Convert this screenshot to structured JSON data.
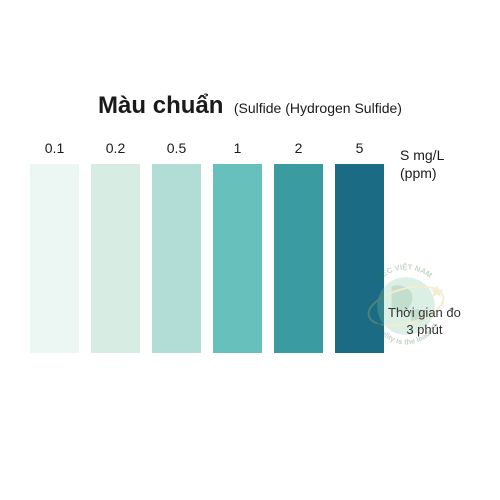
{
  "title": {
    "main": "Màu chuẩn",
    "main_fontsize": 24,
    "main_color": "#1a1a1a",
    "sub": "(Sulfide (Hydrogen Sulfide)",
    "sub_fontsize": 14,
    "sub_color": "#1a1a1a"
  },
  "chart": {
    "type": "color-scale",
    "swatches": [
      {
        "label": "0.1",
        "color": "#ecf6f2"
      },
      {
        "label": "0.2",
        "color": "#d7ede3"
      },
      {
        "label": "0.5",
        "color": "#b2ddd6"
      },
      {
        "label": "1",
        "color": "#68c0bd"
      },
      {
        "label": "2",
        "color": "#3a9ca1"
      },
      {
        "label": "5",
        "color": "#1c6b85"
      }
    ],
    "swatch_width": 49,
    "swatch_height": 189,
    "swatch_gap": 12,
    "label_fontsize": 14,
    "label_color": "#1a1a1a"
  },
  "unit": {
    "line1": "S  mg/L",
    "line2": "(ppm)",
    "fontsize": 14,
    "color": "#1a1a1a"
  },
  "time_note": {
    "line1": "Thời gian đo",
    "line2": "3 phút",
    "fontsize": 13,
    "color": "#333333"
  },
  "watermark": {
    "text_top": "IEC VIỆT NAM",
    "text_bottom": "Quality is the leading",
    "globe_fill": "#7fc8a0",
    "land_fill": "#2a8a4a",
    "ring_color": "#d4c05a",
    "star_color": "#d4c05a"
  },
  "background_color": "#ffffff"
}
